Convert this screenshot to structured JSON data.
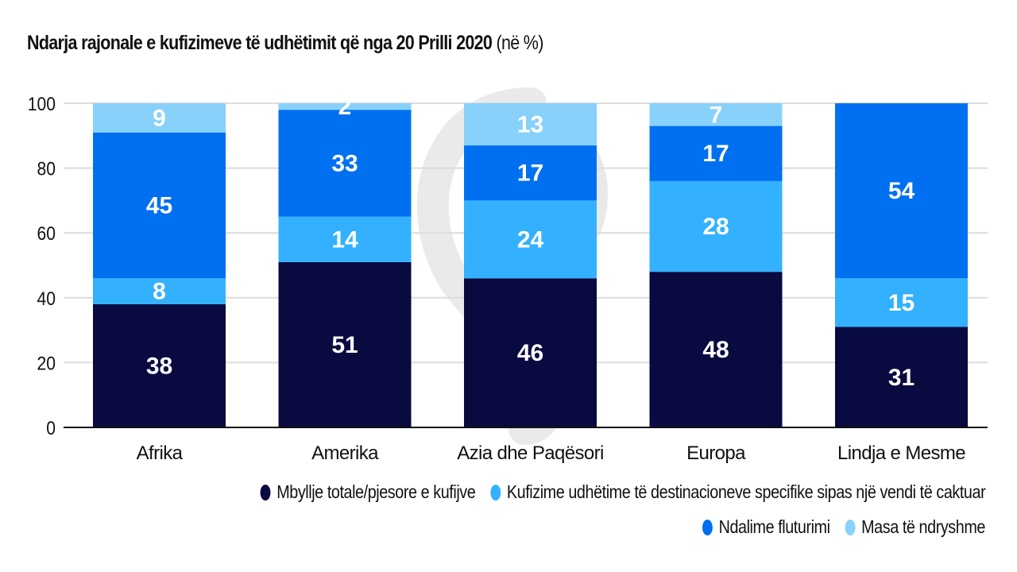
{
  "chart_data": {
    "type": "bar",
    "stacked": true,
    "title": "Ndarja rajonale e kufizimeve të udhëtimit që nga 20 Prilli 2020",
    "title_unit": "(në %)",
    "xlabel": "",
    "ylabel": "",
    "ylim": [
      0,
      100
    ],
    "yticks": [
      0,
      20,
      40,
      60,
      80,
      100
    ],
    "grid": true,
    "legend_position": "bottom-right",
    "categories": [
      "Afrika",
      "Amerika",
      "Azia dhe Paqësori",
      "Europa",
      "Lindja e Mesme"
    ],
    "series": [
      {
        "name": "Mbyllje totale/pjesore e kufijve",
        "color": "#080a40",
        "values": [
          38,
          51,
          46,
          48,
          31
        ]
      },
      {
        "name": "Kufizime udhëtime të destinacioneve specifike sipas një vendi të caktuar",
        "color": "#33b1ff",
        "values": [
          8,
          14,
          24,
          28,
          15
        ]
      },
      {
        "name": "Ndalime fluturimi",
        "color": "#0070f0",
        "values": [
          45,
          33,
          17,
          17,
          54
        ]
      },
      {
        "name": "Masa të ndryshme",
        "color": "#88d1fb",
        "values": [
          9,
          2,
          13,
          7,
          0
        ]
      }
    ]
  }
}
